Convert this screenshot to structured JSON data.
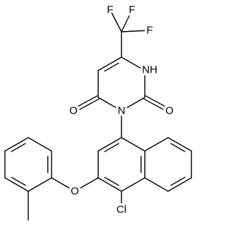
{
  "atoms": {
    "labels": [
      "F",
      "F",
      "F",
      "NH",
      "O",
      "O",
      "N",
      "O",
      "Cl"
    ]
  }
}
